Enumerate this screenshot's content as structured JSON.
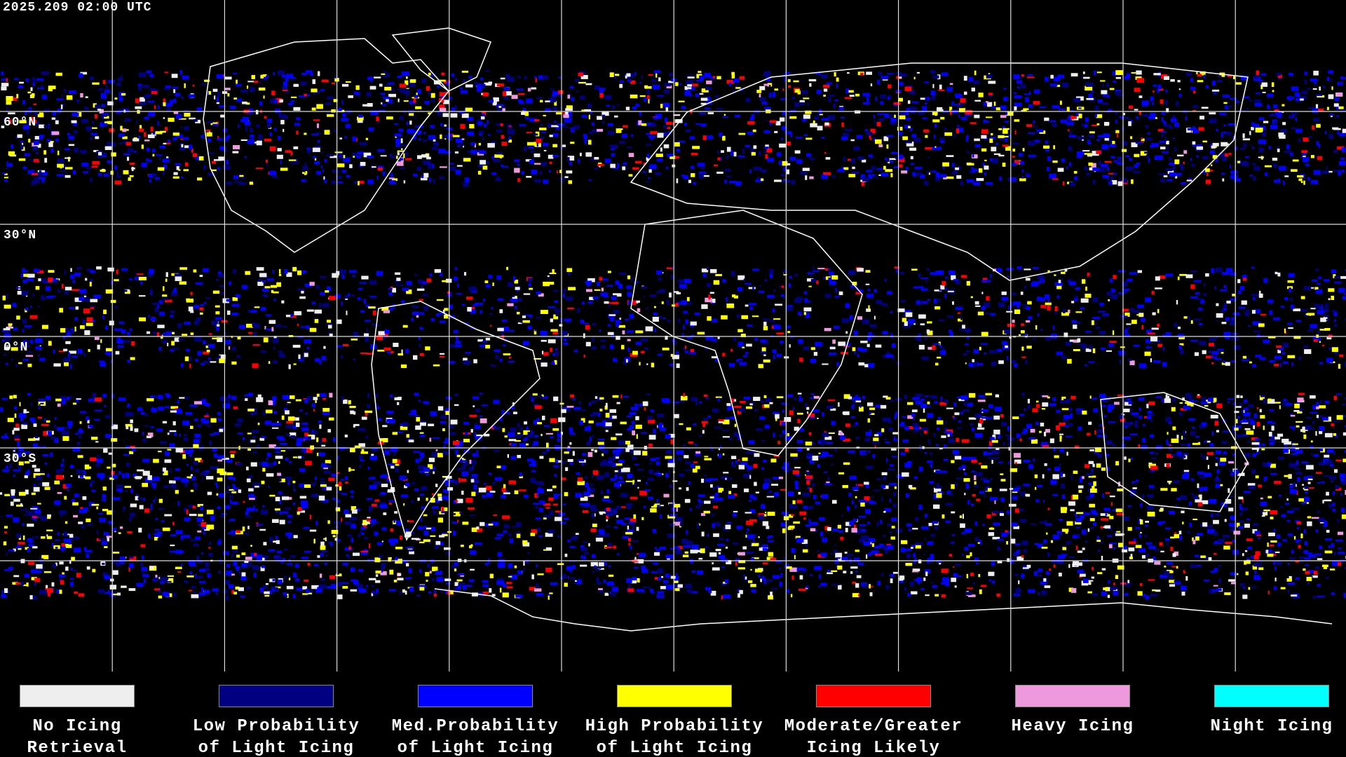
{
  "timestamp": "2025.209 02:00 UTC",
  "lat_labels": [
    "60°N",
    "30°N",
    "0°N",
    "30°S"
  ],
  "legend": [
    {
      "color": "#eeeeee",
      "line1": "No Icing",
      "line2": "Retrieval"
    },
    {
      "color": "#000080",
      "line1": "Low Probability",
      "line2": "of Light Icing"
    },
    {
      "color": "#0000ff",
      "line1": "Med.Probability",
      "line2": "of Light Icing"
    },
    {
      "color": "#ffff00",
      "line1": "High Probability",
      "line2": "of Light Icing"
    },
    {
      "color": "#ff0000",
      "line1": "Moderate/Greater",
      "line2": "Icing Likely"
    },
    {
      "color": "#ee99dd",
      "line1": "Heavy Icing",
      "line2": ""
    },
    {
      "color": "#00ffff",
      "line1": "Night Icing",
      "line2": ""
    }
  ]
}
